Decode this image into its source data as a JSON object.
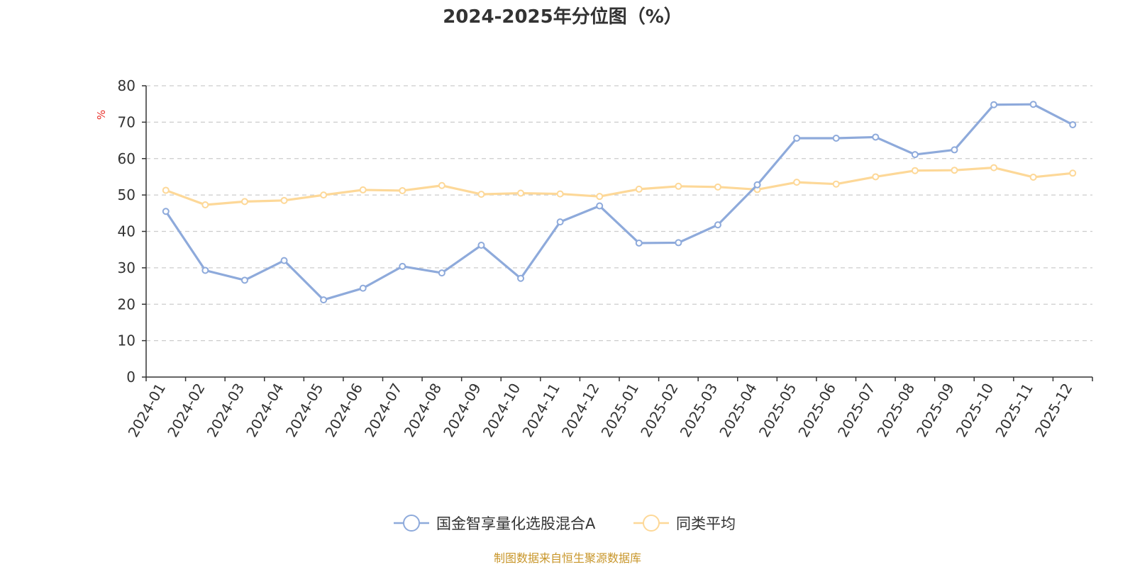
{
  "source_text": "制图数据来自恒生聚源数据库",
  "colors": {
    "series1": "#8eaadb",
    "series2": "#fdd898",
    "source": "#c8962a",
    "unit": "#e8302a",
    "grid": "#cccccc",
    "axis": "#333333"
  },
  "chart_data": {
    "type": "line",
    "title": "2024-2025年分位图（%）",
    "ylabel": "%",
    "xlabel": "",
    "ylim": [
      0,
      80
    ],
    "yticks": [
      "0",
      "10",
      "20",
      "30",
      "40",
      "50",
      "60",
      "70",
      "80"
    ],
    "grid": true,
    "legend_position": "bottom-center",
    "categories": [
      "2024-01",
      "2024-02",
      "2024-03",
      "2024-04",
      "2024-05",
      "2024-06",
      "2024-07",
      "2024-08",
      "2024-09",
      "2024-10",
      "2024-11",
      "2024-12",
      "2025-01",
      "2025-02",
      "2025-03",
      "2025-04",
      "2025-05",
      "2025-06",
      "2025-07",
      "2025-08",
      "2025-09",
      "2025-10",
      "2025-11",
      "2025-12"
    ],
    "series": [
      {
        "name": "国金智享量化选股混合A",
        "color": "#8eaadb",
        "values": [
          45.5,
          29.3,
          26.6,
          32.0,
          21.2,
          24.4,
          30.4,
          28.6,
          36.2,
          27.1,
          42.6,
          47.0,
          36.8,
          36.9,
          41.8,
          52.8,
          65.6,
          65.6,
          65.9,
          61.1,
          62.4,
          74.8,
          74.9,
          69.3
        ]
      },
      {
        "name": "同类平均",
        "color": "#fdd898",
        "values": [
          51.3,
          47.3,
          48.2,
          48.5,
          50.0,
          51.4,
          51.2,
          52.6,
          50.2,
          50.5,
          50.3,
          49.6,
          51.6,
          52.4,
          52.2,
          51.5,
          53.5,
          53.0,
          55.0,
          56.7,
          56.8,
          57.5,
          54.9,
          56.0
        ]
      }
    ]
  }
}
